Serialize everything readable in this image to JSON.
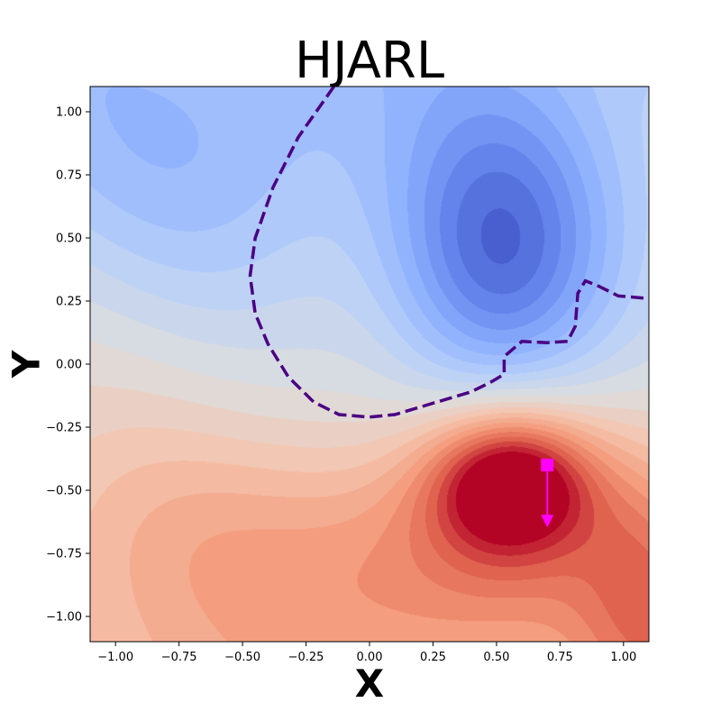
{
  "chart_data": {
    "type": "contour",
    "title": "HJARL",
    "xlabel": "X",
    "ylabel": "Y",
    "xlim": [
      -1.1,
      1.1
    ],
    "ylim": [
      -1.1,
      1.1
    ],
    "xticks": [
      -1.0,
      -0.75,
      -0.5,
      -0.25,
      0.0,
      0.25,
      0.5,
      0.75,
      1.0
    ],
    "yticks": [
      -1.0,
      -0.75,
      -0.5,
      -0.25,
      0.0,
      0.25,
      0.5,
      0.75,
      1.0
    ],
    "xtick_labels": [
      "−1.00",
      "−0.75",
      "−0.50",
      "−0.25",
      "0.00",
      "0.25",
      "0.50",
      "0.75",
      "1.00"
    ],
    "ytick_labels": [
      "−1.00",
      "−0.75",
      "−0.50",
      "−0.25",
      "0.00",
      "0.25",
      "0.50",
      "0.75",
      "1.00"
    ],
    "colormap": "coolwarm",
    "color_range": [
      -1,
      1
    ],
    "grid": false,
    "field_peaks": [
      {
        "x": 0.5,
        "y": 0.4,
        "amplitude": -0.72,
        "sx": 0.3,
        "sy": 0.42
      },
      {
        "x": 0.56,
        "y": -0.46,
        "amplitude": 0.9,
        "sx": 0.22,
        "sy": 0.19
      },
      {
        "x": 0.45,
        "y": -0.75,
        "amplitude": 0.35,
        "sx": 0.4,
        "sy": 0.3
      },
      {
        "x": -0.6,
        "y": 0.8,
        "amplitude": -0.2,
        "sx": 0.5,
        "sy": 0.4
      },
      {
        "x": -0.4,
        "y": -0.7,
        "amplitude": 0.2,
        "sx": 0.6,
        "sy": 0.35
      },
      {
        "x": 1.1,
        "y": -0.9,
        "amplitude": 0.35,
        "sx": 0.2,
        "sy": 0.4
      }
    ],
    "boundary_curve": {
      "color": "#4b0082",
      "style": "dashed",
      "points": [
        [
          -0.14,
          1.1
        ],
        [
          -0.28,
          0.9
        ],
        [
          -0.38,
          0.7
        ],
        [
          -0.45,
          0.5
        ],
        [
          -0.47,
          0.35
        ],
        [
          -0.45,
          0.2
        ],
        [
          -0.4,
          0.08
        ],
        [
          -0.32,
          -0.05
        ],
        [
          -0.22,
          -0.15
        ],
        [
          -0.12,
          -0.2
        ],
        [
          0.0,
          -0.21
        ],
        [
          0.1,
          -0.2
        ],
        [
          0.2,
          -0.17
        ],
        [
          0.3,
          -0.14
        ],
        [
          0.4,
          -0.11
        ],
        [
          0.48,
          -0.07
        ],
        [
          0.53,
          -0.04
        ],
        [
          0.53,
          0.03
        ],
        [
          0.6,
          0.09
        ],
        [
          0.7,
          0.085
        ],
        [
          0.78,
          0.09
        ],
        [
          0.81,
          0.15
        ],
        [
          0.82,
          0.28
        ],
        [
          0.85,
          0.33
        ],
        [
          0.9,
          0.31
        ],
        [
          0.98,
          0.27
        ],
        [
          1.1,
          0.26
        ]
      ]
    },
    "marker": {
      "start": [
        0.7,
        -0.4
      ],
      "end": [
        0.7,
        -0.64
      ],
      "color": "#ff00ff"
    }
  }
}
